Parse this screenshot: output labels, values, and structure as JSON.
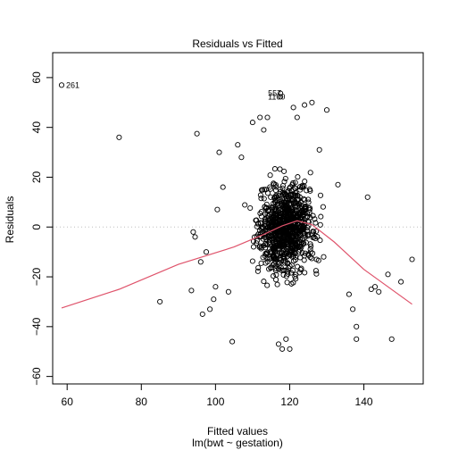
{
  "chart_data": {
    "type": "scatter",
    "title": "Residuals vs Fitted",
    "xlabel": "Fitted values",
    "sublabel": "lm(bwt ~ gestation)",
    "ylabel": "Residuals",
    "xlim": [
      56.1,
      156.0
    ],
    "ylim": [
      -63.0,
      70.0
    ],
    "xticks": [
      60,
      80,
      100,
      120,
      140
    ],
    "yticks": [
      -60,
      -40,
      -20,
      0,
      20,
      40,
      60
    ],
    "grid": false,
    "zero_line": {
      "y": 0,
      "style": "dotted",
      "color": "#bebebe"
    },
    "point_style": {
      "shape": "open-circle",
      "color": "#000000"
    },
    "smoother": {
      "color": "#df536b",
      "x": [
        58.5,
        74,
        90,
        105,
        113,
        118,
        122,
        126,
        132,
        140,
        153
      ],
      "y": [
        -32.5,
        -25,
        -15,
        -8,
        -3,
        0.5,
        2.5,
        1,
        -6,
        -17,
        -31
      ]
    },
    "labeled_points": [
      {
        "label": "261",
        "x": 58.5,
        "y": 57
      },
      {
        "label": "1100",
        "x": 117.5,
        "y": 52.3
      },
      {
        "label": "557",
        "x": 117.5,
        "y": 53.7
      }
    ],
    "fixed_points": {
      "x": [
        58.5,
        74,
        85,
        93.5,
        94,
        94.5,
        95,
        96,
        96.5,
        97.5,
        98.5,
        99.5,
        100,
        100.5,
        101,
        102,
        103.5,
        104.5,
        106,
        107,
        110,
        112,
        113,
        114,
        117,
        118,
        119,
        120,
        121,
        122,
        124,
        126,
        128,
        130,
        133,
        136,
        137,
        138,
        138,
        141,
        142,
        143,
        144,
        146.5,
        147.5,
        150,
        153,
        117.5,
        117.5
      ],
      "y": [
        57,
        36,
        -30,
        -25.5,
        -2,
        -4,
        37.5,
        -14,
        -35,
        -10,
        -33,
        -29,
        -24,
        7,
        30,
        16,
        -26,
        -46,
        33,
        28,
        42,
        44,
        39,
        44,
        -47,
        -49,
        -45,
        -49,
        48,
        44,
        49,
        50,
        31,
        47,
        17,
        -27,
        -33,
        -40,
        -45,
        12,
        -25,
        -24,
        -26,
        -19,
        -45,
        -22,
        -13,
        52.3,
        53.7
      ]
    },
    "random_cloud": {
      "count": 900,
      "seed": 7,
      "x_center": 119,
      "x_sd": 5.5,
      "y_sd": 13.5
    }
  }
}
